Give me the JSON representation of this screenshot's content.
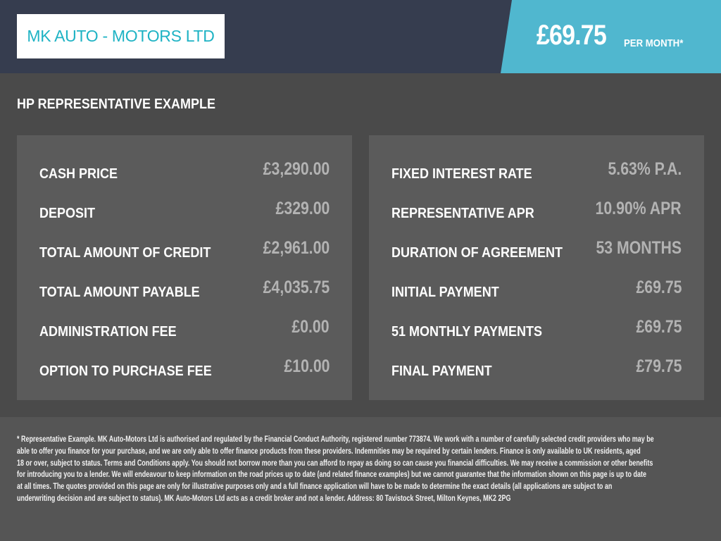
{
  "header": {
    "logo_text": "MK AUTO - MOTORS LTD",
    "monthly_price": "£69.75",
    "per_month_label": "PER MONTH*",
    "colors": {
      "header_bg": "#363d4f",
      "accent": "#50b7cf",
      "logo_text": "#1fb3c4"
    }
  },
  "section_title": "HP REPRESENTATIVE EXAMPLE",
  "left_panel": [
    {
      "label": "CASH PRICE",
      "value": "£3,290.00"
    },
    {
      "label": "DEPOSIT",
      "value": "£329.00"
    },
    {
      "label": "TOTAL AMOUNT OF CREDIT",
      "value": "£2,961.00"
    },
    {
      "label": "TOTAL AMOUNT PAYABLE",
      "value": "£4,035.75"
    },
    {
      "label": "ADMINISTRATION FEE",
      "value": "£0.00"
    },
    {
      "label": "OPTION TO PURCHASE FEE",
      "value": "£10.00"
    }
  ],
  "right_panel": [
    {
      "label": "FIXED INTEREST RATE",
      "value": "5.63% P.A."
    },
    {
      "label": "REPRESENTATIVE APR",
      "value": "10.90% APR"
    },
    {
      "label": "DURATION OF AGREEMENT",
      "value": "53 MONTHS"
    },
    {
      "label": "INITIAL PAYMENT",
      "value": "£69.75"
    },
    {
      "label": "51 MONTHLY PAYMENTS",
      "value": "£69.75"
    },
    {
      "label": "FINAL PAYMENT",
      "value": "£79.75"
    }
  ],
  "disclaimer_lines": [
    "* Representative Example. MK Auto-Motors Ltd is authorised and regulated by the Financial Conduct Authority, registered number 773874. We work with a number of carefully selected credit providers who may be",
    "able to offer you finance for your purchase, and we are only able to offer finance products from these providers. Indemnities may be required by certain lenders. Finance is only available to UK residents, aged",
    "18 or over, subject to status. Terms and Conditions apply. You should not borrow more than you can afford to repay as doing so can cause you financial difficulties. We may receive a commission or other benefits",
    "for introducing you to a lender. We will endeavour to keep information on the road prices up to date (and related finance examples) but we cannot guarantee that the information shown on this page is up to date",
    "at all times. The quotes provided on this page are only for illustrative purposes only and a full finance application will have to be made to determine the exact details (all applications are subject to an",
    "underwriting decision and are subject to status). MK Auto-Motors Ltd acts as a credit broker and not a lender. Address: 80 Tavistock Street, Milton Keynes, MK2 2PG"
  ]
}
